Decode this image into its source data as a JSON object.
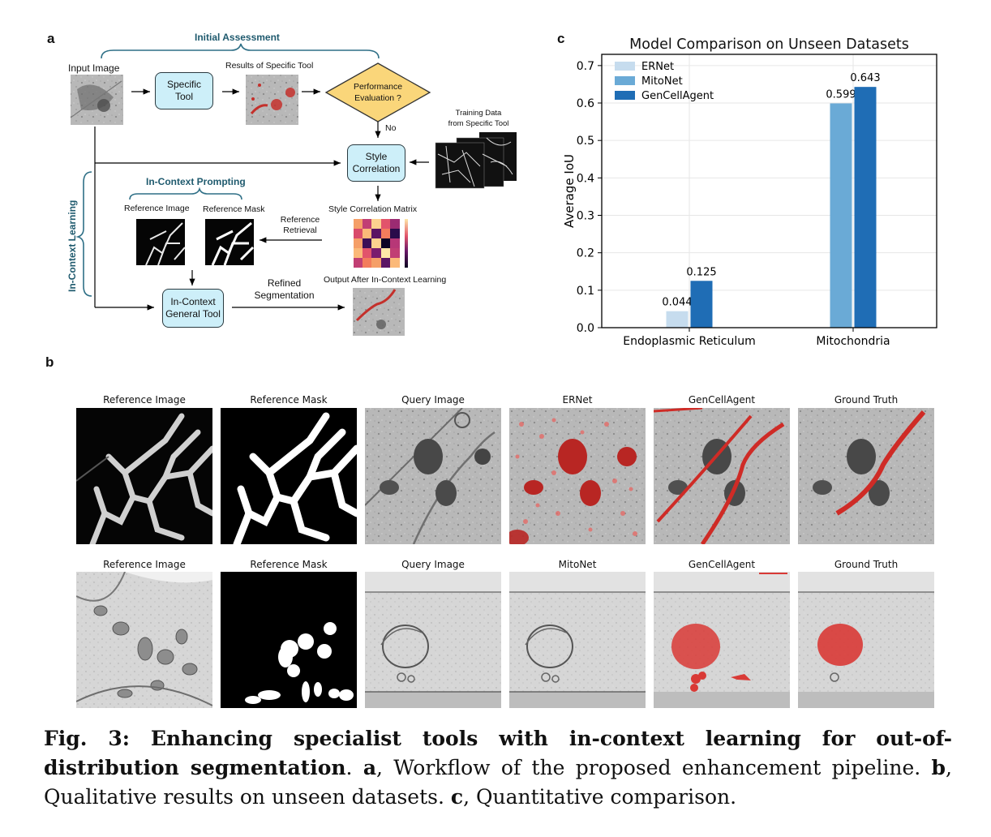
{
  "panels": {
    "a": "a",
    "b": "b",
    "c": "c"
  },
  "workflow": {
    "initial_assessment": "Initial Assessment",
    "input_image": "Input Image",
    "specific_tool": [
      "Specific",
      "Tool"
    ],
    "results_specific": "Results of Specific Tool",
    "performance": [
      "Performance",
      "Evaluation ?"
    ],
    "no": "No",
    "training_data": [
      "Training Data",
      "from Specific Tool"
    ],
    "style_correlation": [
      "Style",
      "Correlation"
    ],
    "in_context_prompting": "In-Context Prompting",
    "reference_image": "Reference Image",
    "reference_mask": "Reference Mask",
    "style_matrix": "Style Correlation Matrix",
    "reference_retrieval": [
      "Reference",
      "Retrieval"
    ],
    "in_context_learning": "In-Context Learning",
    "general_tool": [
      "In-Context",
      "General Tool"
    ],
    "refined": [
      "Refined",
      "Segmentation"
    ],
    "output_label": "Output After In-Context Learning"
  },
  "qualitative": {
    "row1": [
      "Reference Image",
      "Reference Mask",
      "Query Image",
      "ERNet",
      "GenCellAgent",
      "Ground Truth"
    ],
    "row2": [
      "Reference Image",
      "Reference Mask",
      "Query Image",
      "MitoNet",
      "GenCellAgent",
      "Ground Truth"
    ]
  },
  "chart_data": {
    "type": "bar",
    "title": "Model Comparison on Unseen Datasets",
    "ylabel": "Average IoU",
    "xlabel": "",
    "categories": [
      "Endoplasmic Reticulum",
      "Mitochondria"
    ],
    "series": [
      {
        "name": "ERNet",
        "values": [
          0.044,
          null
        ],
        "color": "#c6dcee"
      },
      {
        "name": "MitoNet",
        "values": [
          null,
          0.599
        ],
        "color": "#6aaad6"
      },
      {
        "name": "GenCellAgent",
        "values": [
          0.125,
          0.643
        ],
        "color": "#1f6db5"
      }
    ],
    "value_labels": [
      "0.044",
      "0.125",
      "0.599",
      "0.643"
    ],
    "ylim": [
      0,
      0.73
    ],
    "yticks": [
      "0.0",
      "0.1",
      "0.2",
      "0.3",
      "0.4",
      "0.5",
      "0.6",
      "0.7"
    ],
    "grid": true,
    "legend": "top-left"
  },
  "caption": {
    "fig": "Fig. 3",
    "title": "Enhancing specialist tools with in-context learning for out-of-distribution segmentation",
    "a_label": "a",
    "a_text": ", Workflow of the proposed enhancement pipeline. ",
    "b_label": "b",
    "b_text": ", Qualitative results on unseen datasets. ",
    "c_label": "c",
    "c_text": ", Quantitative comparison."
  }
}
